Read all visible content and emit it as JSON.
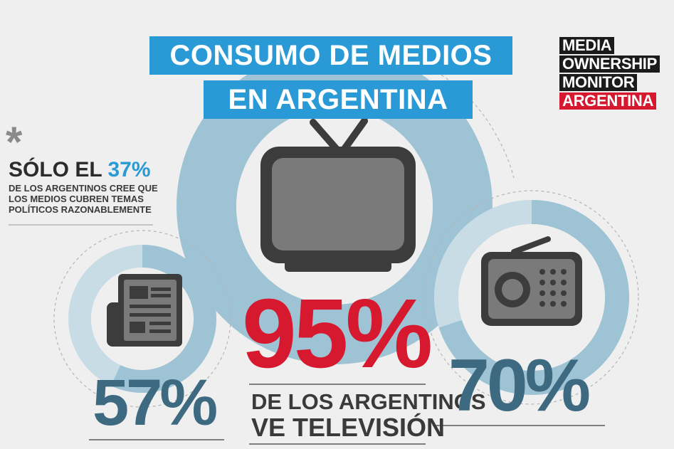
{
  "title": {
    "line1": "CONSUMO DE MEDIOS",
    "line2": "EN ARGENTINA"
  },
  "logo": {
    "line1": "MEDIA",
    "line2": "OWNERSHIP",
    "line3": "MONITOR",
    "line4": "ARGENTINA"
  },
  "side_note": {
    "asterisk": "*",
    "lead": "SÓLO EL",
    "percent": "37%",
    "line2": "DE LOS ARGENTINOS CREE QUE",
    "line3": "LOS MEDIOS CUBREN TEMAS",
    "line4": "POLÍTICOS RAZONABLEMENTE"
  },
  "stats": {
    "tv": {
      "value": "95%",
      "caption1": "DE LOS ARGENTINOS",
      "caption2": "VE TELEVISIÓN",
      "share": 0.95
    },
    "press": {
      "value": "57%",
      "share": 0.57
    },
    "radio": {
      "value": "70%",
      "share": 0.7
    }
  },
  "colors": {
    "background": "#efefef",
    "title_blue": "#2a9ad6",
    "ring": "#9ec3d4",
    "ring_light": "#c8dce6",
    "stat_teal": "#3d6a80",
    "stat_red": "#d6192e",
    "icon_gray": "#7a7a7a",
    "icon_dark": "#3c3c3c"
  },
  "icons": [
    "television-icon",
    "newspaper-icon",
    "radio-icon",
    "asterisk-icon"
  ]
}
